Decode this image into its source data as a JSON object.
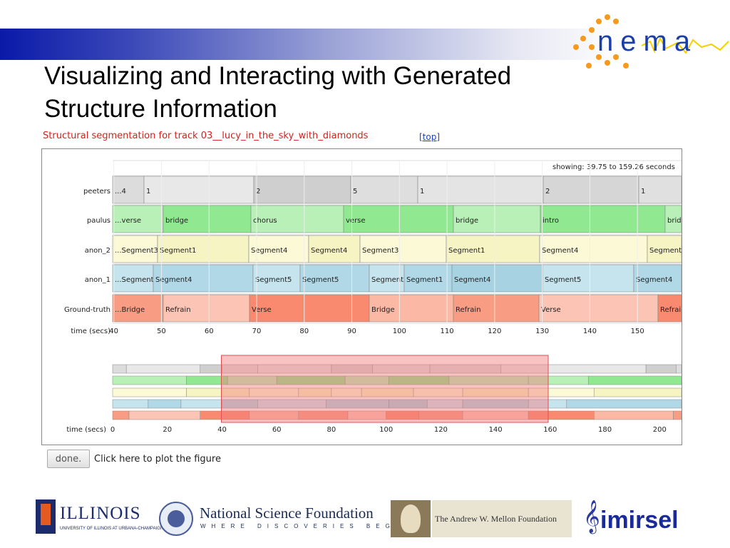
{
  "slide": {
    "title_line1": "Visualizing and Interacting with Generated",
    "title_line2": "Structure Information"
  },
  "viz": {
    "heading": "Structural segmentation for track 03__lucy_in_the_sky_with_diamonds",
    "top_link": "[top]",
    "showing_label": "showing: 39.75 to 159.26 seconds",
    "time_label": "time (secs)",
    "rows": [
      {
        "name": "peeters",
        "labels": [
          "...4",
          "1",
          "2",
          "5",
          "1",
          "2",
          "1"
        ]
      },
      {
        "name": "paulus",
        "labels": [
          "...verse",
          "bridge",
          "chorus",
          "verse",
          "bridge",
          "intro",
          "bridg"
        ]
      },
      {
        "name": "anon_2",
        "labels": [
          "...Segment3",
          "Segment1",
          "Segment4",
          "Segment4",
          "Segment3",
          "Segment1",
          "Segment4",
          "Segment"
        ]
      },
      {
        "name": "anon_1",
        "labels": [
          "...Segment",
          "Segment4",
          "Segment5",
          "Segment5",
          "Segment",
          "Segment1",
          "Segment4",
          "Segment5",
          "Segment4"
        ]
      },
      {
        "name": "Ground-truth",
        "labels": [
          "...Bridge",
          "Refrain",
          "Verse",
          "Bridge",
          "Refrain",
          "Verse",
          "Refrain"
        ]
      }
    ],
    "top_ticks": [
      "40",
      "50",
      "60",
      "70",
      "80",
      "90",
      "100",
      "110",
      "120",
      "130",
      "140",
      "150"
    ],
    "bottom_ticks": [
      "0",
      "20",
      "40",
      "60",
      "80",
      "100",
      "120",
      "140",
      "160",
      "180",
      "200"
    ],
    "colors": {
      "peeters": [
        "#dcdcdc",
        "#e8e8e8",
        "#cfcfcf",
        "#dedede",
        "#e4e4e4",
        "#d6d6d6",
        "#e0e0e0"
      ],
      "paulus": [
        "#b8f0b8",
        "#90e890",
        "#b8f0b8",
        "#90e890",
        "#b8f0b8",
        "#90e890",
        "#b8f0b8"
      ],
      "anon_2": [
        "#fbf9d6",
        "#f7f4c4",
        "#fbf9d6",
        "#f7f4c4",
        "#fbf9d6",
        "#f7f4c4",
        "#fbf9d6",
        "#f7f4c4"
      ],
      "anon_1": [
        "#c6e4ee",
        "#b0d8e6",
        "#c6e4ee",
        "#b0d8e6",
        "#c6e4ee",
        "#b0d8e6",
        "#a6d2e2",
        "#c6e4ee",
        "#b0d8e6"
      ],
      "ground": [
        "#f99c84",
        "#fbc4b4",
        "#f98a70",
        "#fbb8a4",
        "#f99c84",
        "#fbc4b4",
        "#f98a70"
      ],
      "selection": "#f27a7a"
    },
    "done_button": "done.",
    "done_hint": "Click here to plot the figure"
  },
  "logos": {
    "nema": "nema",
    "illinois": "ILLINOIS",
    "illinois_sub": "UNIVERSITY OF ILLINOIS AT URBANA-CHAMPAIGN",
    "nsf_name": "National Science Foundation",
    "nsf_tag": "WHERE DISCOVERIES BEGIN",
    "mellon": "The Andrew W. Mellon Foundation",
    "imirsel": "imirsel",
    "nema_icon": "nema-dots-logo",
    "clef_icon": "treble-clef-icon"
  }
}
